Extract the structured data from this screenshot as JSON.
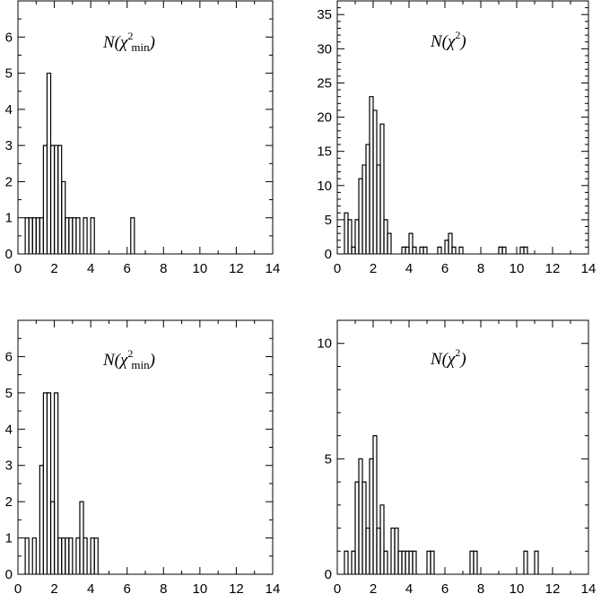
{
  "chart_data": [
    {
      "type": "histogram",
      "title_parts": {
        "main": "N(χ",
        "sup": "2",
        "sub": "min",
        "close": ")"
      },
      "xlabel": "",
      "ylabel": "",
      "xlim": [
        0,
        14
      ],
      "ylim": [
        0,
        7
      ],
      "xticks": [
        0,
        2,
        4,
        6,
        8,
        10,
        12,
        14
      ],
      "yticks": [
        0,
        1,
        2,
        3,
        4,
        5,
        6
      ],
      "grid": false,
      "bin_width": 0.2,
      "bins": [
        {
          "x": 0.4,
          "y": 1
        },
        {
          "x": 0.6,
          "y": 1
        },
        {
          "x": 0.8,
          "y": 1
        },
        {
          "x": 1.0,
          "y": 1
        },
        {
          "x": 1.2,
          "y": 1
        },
        {
          "x": 1.4,
          "y": 3
        },
        {
          "x": 1.6,
          "y": 5
        },
        {
          "x": 1.8,
          "y": 3
        },
        {
          "x": 2.0,
          "y": 3
        },
        {
          "x": 2.2,
          "y": 3
        },
        {
          "x": 2.4,
          "y": 2
        },
        {
          "x": 2.6,
          "y": 1
        },
        {
          "x": 2.8,
          "y": 1
        },
        {
          "x": 3.0,
          "y": 1
        },
        {
          "x": 3.2,
          "y": 1
        },
        {
          "x": 3.4,
          "y": 0
        },
        {
          "x": 3.6,
          "y": 1
        },
        {
          "x": 3.8,
          "y": 0
        },
        {
          "x": 4.0,
          "y": 1
        },
        {
          "x": 6.2,
          "y": 1
        }
      ]
    },
    {
      "type": "histogram",
      "title_parts": {
        "main": "N(χ",
        "sup": "2",
        "sub": "",
        "close": ")"
      },
      "xlabel": "",
      "ylabel": "",
      "xlim": [
        0,
        14
      ],
      "ylim": [
        0,
        37
      ],
      "xticks": [
        0,
        2,
        4,
        6,
        8,
        10,
        12,
        14
      ],
      "yticks": [
        0,
        5,
        10,
        15,
        20,
        25,
        30,
        35
      ],
      "grid": false,
      "bin_width": 0.2,
      "bins": [
        {
          "x": 0.4,
          "y": 6
        },
        {
          "x": 0.6,
          "y": 5
        },
        {
          "x": 0.8,
          "y": 1
        },
        {
          "x": 1.0,
          "y": 5
        },
        {
          "x": 1.2,
          "y": 11
        },
        {
          "x": 1.4,
          "y": 13
        },
        {
          "x": 1.6,
          "y": 16
        },
        {
          "x": 1.8,
          "y": 23
        },
        {
          "x": 2.0,
          "y": 21
        },
        {
          "x": 2.2,
          "y": 13
        },
        {
          "x": 2.4,
          "y": 19
        },
        {
          "x": 2.6,
          "y": 5
        },
        {
          "x": 2.8,
          "y": 3
        },
        {
          "x": 3.6,
          "y": 1
        },
        {
          "x": 3.8,
          "y": 1
        },
        {
          "x": 4.0,
          "y": 3
        },
        {
          "x": 4.2,
          "y": 1
        },
        {
          "x": 4.6,
          "y": 1
        },
        {
          "x": 4.8,
          "y": 1
        },
        {
          "x": 5.6,
          "y": 1
        },
        {
          "x": 6.0,
          "y": 2
        },
        {
          "x": 6.2,
          "y": 3
        },
        {
          "x": 6.4,
          "y": 1
        },
        {
          "x": 6.8,
          "y": 1
        },
        {
          "x": 9.0,
          "y": 1
        },
        {
          "x": 9.2,
          "y": 1
        },
        {
          "x": 10.2,
          "y": 1
        },
        {
          "x": 10.4,
          "y": 1
        }
      ]
    },
    {
      "type": "histogram",
      "title_parts": {
        "main": "N(χ",
        "sup": "2",
        "sub": "min",
        "close": ")"
      },
      "xlabel": "",
      "ylabel": "",
      "xlim": [
        0,
        14
      ],
      "ylim": [
        0,
        7
      ],
      "xticks": [
        0,
        2,
        4,
        6,
        8,
        10,
        12,
        14
      ],
      "yticks": [
        0,
        1,
        2,
        3,
        4,
        5,
        6
      ],
      "grid": false,
      "bin_width": 0.2,
      "bins": [
        {
          "x": 0.4,
          "y": 1
        },
        {
          "x": 0.8,
          "y": 1
        },
        {
          "x": 1.0,
          "y": 0
        },
        {
          "x": 1.2,
          "y": 3
        },
        {
          "x": 1.4,
          "y": 5
        },
        {
          "x": 1.6,
          "y": 5
        },
        {
          "x": 1.8,
          "y": 2
        },
        {
          "x": 2.0,
          "y": 5
        },
        {
          "x": 2.2,
          "y": 1
        },
        {
          "x": 2.4,
          "y": 1
        },
        {
          "x": 2.6,
          "y": 1
        },
        {
          "x": 2.8,
          "y": 1
        },
        {
          "x": 3.0,
          "y": 0
        },
        {
          "x": 3.2,
          "y": 1
        },
        {
          "x": 3.4,
          "y": 2
        },
        {
          "x": 3.6,
          "y": 1
        },
        {
          "x": 4.0,
          "y": 1
        },
        {
          "x": 4.2,
          "y": 1
        }
      ]
    },
    {
      "type": "histogram",
      "title_parts": {
        "main": "N(χ",
        "sup": "2",
        "sub": "",
        "close": ")"
      },
      "xlabel": "",
      "ylabel": "",
      "xlim": [
        0,
        14
      ],
      "ylim": [
        0,
        11
      ],
      "xticks": [
        0,
        2,
        4,
        6,
        8,
        10,
        12,
        14
      ],
      "yticks": [
        0,
        5,
        10
      ],
      "grid": false,
      "bin_width": 0.2,
      "bins": [
        {
          "x": 0.4,
          "y": 1
        },
        {
          "x": 0.8,
          "y": 1
        },
        {
          "x": 1.0,
          "y": 4
        },
        {
          "x": 1.2,
          "y": 5
        },
        {
          "x": 1.4,
          "y": 4
        },
        {
          "x": 1.6,
          "y": 2
        },
        {
          "x": 1.8,
          "y": 5
        },
        {
          "x": 2.0,
          "y": 6
        },
        {
          "x": 2.2,
          "y": 2
        },
        {
          "x": 2.4,
          "y": 3
        },
        {
          "x": 2.6,
          "y": 1
        },
        {
          "x": 2.8,
          "y": 0
        },
        {
          "x": 3.0,
          "y": 2
        },
        {
          "x": 3.2,
          "y": 2
        },
        {
          "x": 3.4,
          "y": 1
        },
        {
          "x": 3.6,
          "y": 1
        },
        {
          "x": 3.8,
          "y": 1
        },
        {
          "x": 4.0,
          "y": 1
        },
        {
          "x": 4.2,
          "y": 1
        },
        {
          "x": 5.0,
          "y": 1
        },
        {
          "x": 5.2,
          "y": 1
        },
        {
          "x": 7.4,
          "y": 1
        },
        {
          "x": 7.6,
          "y": 1
        },
        {
          "x": 10.4,
          "y": 1
        },
        {
          "x": 11.0,
          "y": 1
        }
      ]
    }
  ]
}
